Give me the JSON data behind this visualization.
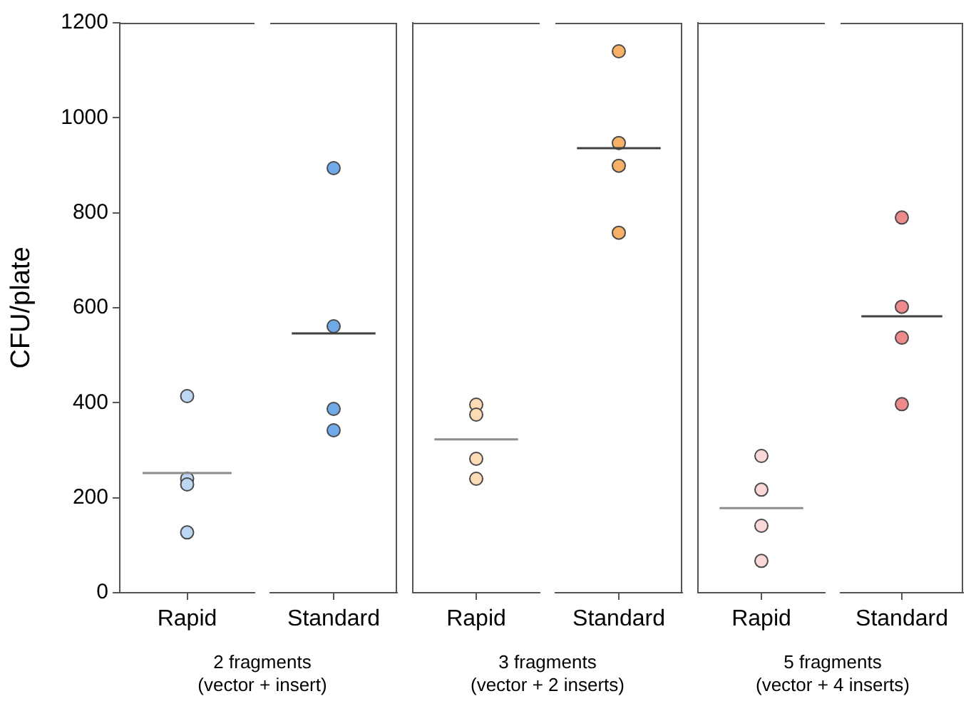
{
  "chart_data": [
    {
      "type": "scatter",
      "categories": [
        "Rapid"
      ],
      "xlabel": "2 fragments\n(vector + insert)",
      "ylabel": "CFU/plate",
      "ylim": [
        0,
        1200
      ],
      "yticks": [
        0,
        200,
        400,
        600,
        800,
        1000,
        1200
      ],
      "marker": "circle",
      "series": [
        {
          "x": [
            "Rapid",
            "Rapid",
            "Rapid",
            "Rapid"
          ],
          "color": "#bcd6f4",
          "values": [
            414,
            240,
            228,
            127
          ]
        }
      ],
      "ref_lines": [
        {
          "axis": "y",
          "value": 252,
          "color": "#8c8c8c"
        }
      ]
    },
    {
      "type": "scatter",
      "categories": [
        "Standard"
      ],
      "ylim": [
        0,
        1200
      ],
      "tick_labels": "x",
      "marker": "circle",
      "series": [
        {
          "x": [
            "Standard",
            "Standard",
            "Standard",
            "Standard"
          ],
          "color": "#70a9e8",
          "values": [
            894,
            561,
            387,
            342
          ]
        }
      ],
      "ref_lines": [
        {
          "axis": "y",
          "value": 546,
          "color": "#404040"
        }
      ]
    },
    {
      "type": "scatter",
      "categories": [
        "Rapid"
      ],
      "xlabel": "3 fragments\n(vector + 2 inserts)",
      "ylim": [
        0,
        1200
      ],
      "tick_labels": "x",
      "marker": "circle",
      "series": [
        {
          "x": [
            "Rapid",
            "Rapid",
            "Rapid",
            "Rapid"
          ],
          "color": "#fddbb4",
          "values": [
            396,
            375,
            282,
            240
          ]
        }
      ],
      "ref_lines": [
        {
          "axis": "y",
          "value": 323,
          "color": "#8c8c8c"
        }
      ]
    },
    {
      "type": "scatter",
      "categories": [
        "Standard"
      ],
      "ylim": [
        0,
        1200
      ],
      "tick_labels": "x",
      "marker": "circle",
      "series": [
        {
          "x": [
            "Standard",
            "Standard",
            "Standard",
            "Standard"
          ],
          "color": "#f7b068",
          "values": [
            1140,
            947,
            899,
            758
          ]
        }
      ],
      "ref_lines": [
        {
          "axis": "y",
          "value": 936,
          "color": "#404040"
        }
      ]
    },
    {
      "type": "scatter",
      "categories": [
        "Rapid"
      ],
      "xlabel": "5 fragments\n(vector + 4 inserts)",
      "ylim": [
        0,
        1200
      ],
      "tick_labels": "x",
      "marker": "circle",
      "series": [
        {
          "x": [
            "Rapid",
            "Rapid",
            "Rapid",
            "Rapid"
          ],
          "color": "#fbd8d8",
          "values": [
            288,
            217,
            141,
            67
          ]
        }
      ],
      "ref_lines": [
        {
          "axis": "y",
          "value": 178,
          "color": "#8c8c8c"
        }
      ]
    },
    {
      "type": "scatter",
      "categories": [
        "Standard"
      ],
      "ylim": [
        0,
        1200
      ],
      "tick_labels": "x",
      "marker": "circle",
      "series": [
        {
          "x": [
            "Standard",
            "Standard",
            "Standard",
            "Standard"
          ],
          "color": "#ee8a8a",
          "values": [
            790,
            602,
            537,
            397
          ]
        }
      ],
      "ref_lines": [
        {
          "axis": "y",
          "value": 582,
          "color": "#404040"
        }
      ]
    }
  ]
}
